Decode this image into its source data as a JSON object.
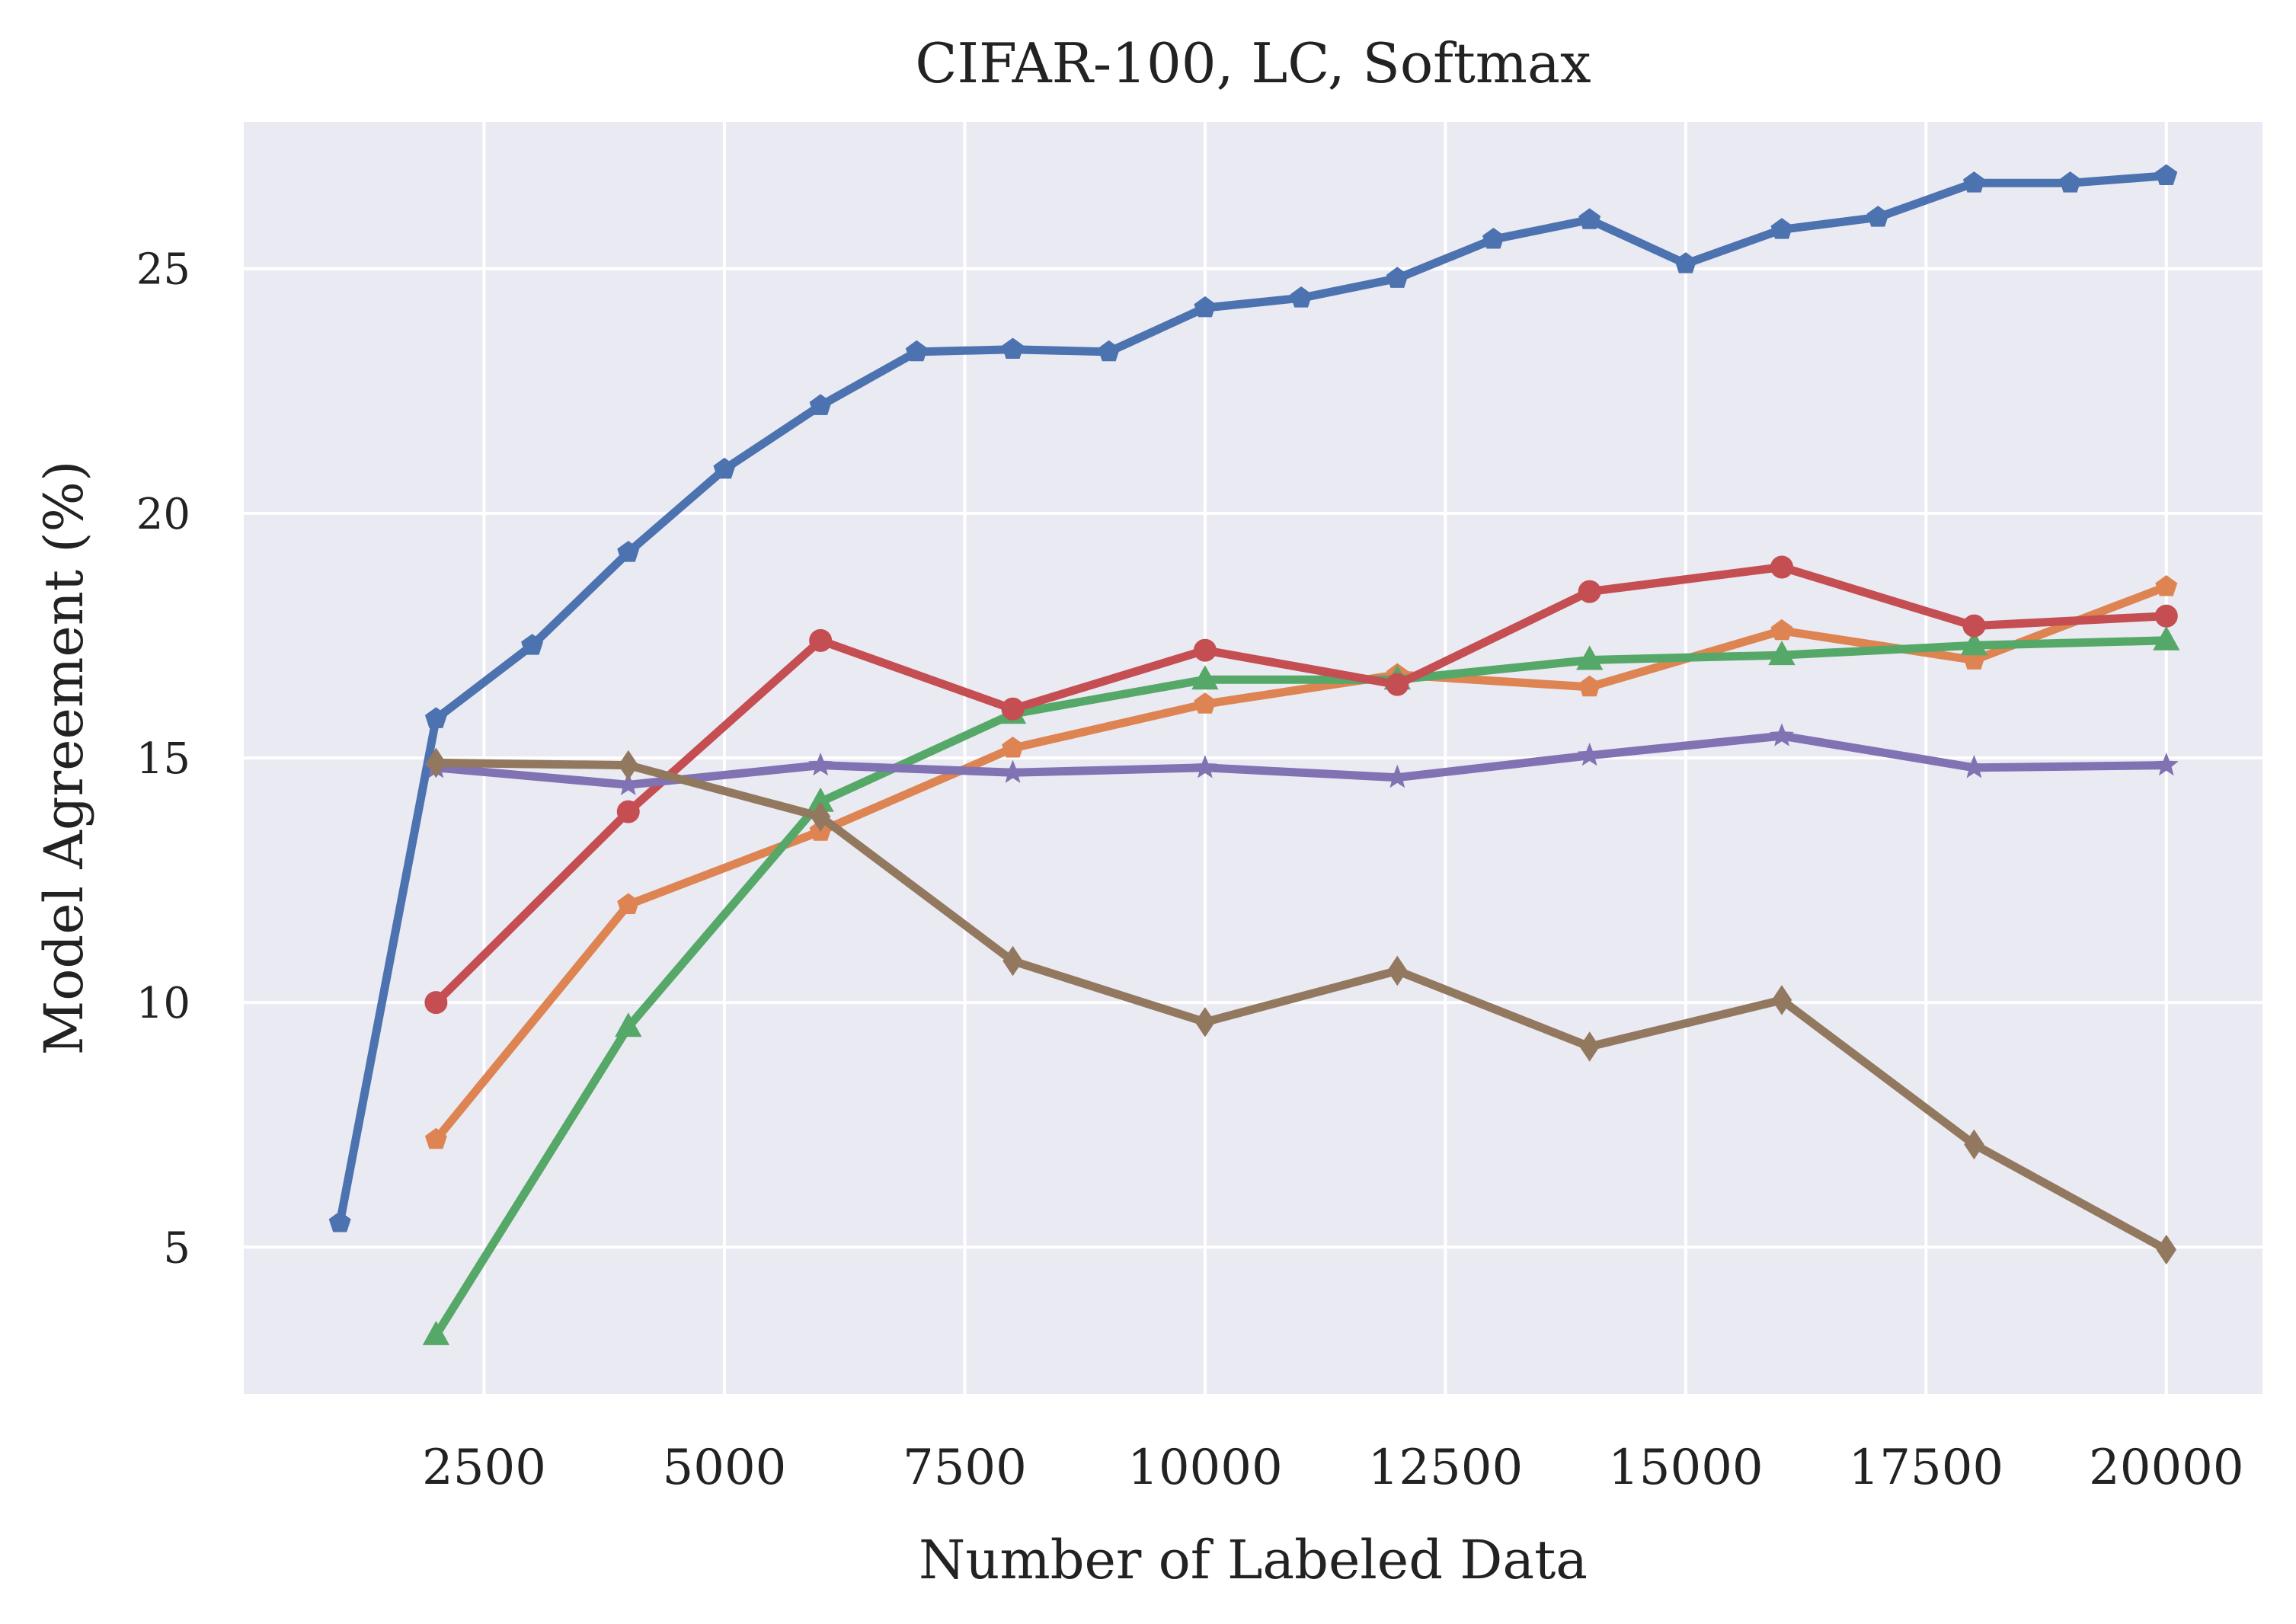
{
  "chart_data": {
    "type": "line",
    "title": "CIFAR-100, LC, Softmax",
    "xlabel": "Number of Labeled Data",
    "ylabel": "Model Agreement (%)",
    "xlim": [
      0,
      21000
    ],
    "ylim": [
      2,
      28
    ],
    "xticks": [
      2500,
      5000,
      7500,
      10000,
      12500,
      15000,
      17500,
      20000
    ],
    "yticks": [
      5,
      10,
      15,
      20,
      25
    ],
    "grid": true,
    "background": "#EAEAF2",
    "series": [
      {
        "color": "#4C72B0",
        "marker": "pentagon",
        "points": [
          [
            1000,
            5.5
          ],
          [
            2000,
            15.8
          ],
          [
            3000,
            17.3
          ],
          [
            4000,
            19.2
          ],
          [
            5000,
            20.9
          ],
          [
            6000,
            22.2
          ],
          [
            7000,
            23.3
          ],
          [
            8000,
            23.35
          ],
          [
            9000,
            23.3
          ],
          [
            10000,
            24.2
          ],
          [
            11000,
            24.4
          ],
          [
            12000,
            24.8
          ],
          [
            13000,
            25.6
          ],
          [
            14000,
            26.0
          ],
          [
            15000,
            25.1
          ],
          [
            16000,
            25.8
          ],
          [
            17000,
            26.05
          ],
          [
            18000,
            26.75
          ],
          [
            19000,
            26.75
          ],
          [
            20000,
            26.9
          ]
        ]
      },
      {
        "color": "#DD8452",
        "marker": "pentagon",
        "points": [
          [
            2000,
            7.2
          ],
          [
            4000,
            12.0
          ],
          [
            6000,
            13.5
          ],
          [
            8000,
            15.2
          ],
          [
            10000,
            16.1
          ],
          [
            12000,
            16.7
          ],
          [
            14000,
            16.45
          ],
          [
            16000,
            17.6
          ],
          [
            18000,
            17.0
          ],
          [
            20000,
            18.5
          ]
        ]
      },
      {
        "color": "#55A868",
        "marker": "triangle",
        "points": [
          [
            2000,
            3.2
          ],
          [
            4000,
            9.5
          ],
          [
            6000,
            14.1
          ],
          [
            8000,
            15.9
          ],
          [
            10000,
            16.6
          ],
          [
            12000,
            16.6
          ],
          [
            14000,
            17.0
          ],
          [
            16000,
            17.1
          ],
          [
            18000,
            17.3
          ],
          [
            20000,
            17.4
          ]
        ]
      },
      {
        "color": "#C44E52",
        "marker": "circle",
        "points": [
          [
            2000,
            10.0
          ],
          [
            4000,
            13.9
          ],
          [
            6000,
            17.4
          ],
          [
            8000,
            16.0
          ],
          [
            10000,
            17.2
          ],
          [
            12000,
            16.5
          ],
          [
            14000,
            18.4
          ],
          [
            16000,
            18.9
          ],
          [
            18000,
            17.7
          ],
          [
            20000,
            17.9
          ]
        ]
      },
      {
        "color": "#8172B3",
        "marker": "star",
        "points": [
          [
            2000,
            14.8
          ],
          [
            4000,
            14.45
          ],
          [
            6000,
            14.85
          ],
          [
            8000,
            14.7
          ],
          [
            10000,
            14.8
          ],
          [
            12000,
            14.6
          ],
          [
            14000,
            15.05
          ],
          [
            16000,
            15.45
          ],
          [
            18000,
            14.8
          ],
          [
            20000,
            14.85
          ]
        ]
      },
      {
        "color": "#937860",
        "marker": "diamond",
        "points": [
          [
            2000,
            14.9
          ],
          [
            4000,
            14.85
          ],
          [
            6000,
            13.8
          ],
          [
            8000,
            10.85
          ],
          [
            10000,
            9.6
          ],
          [
            12000,
            10.65
          ],
          [
            14000,
            9.1
          ],
          [
            16000,
            10.05
          ],
          [
            18000,
            7.1
          ],
          [
            20000,
            4.95
          ]
        ]
      }
    ]
  }
}
